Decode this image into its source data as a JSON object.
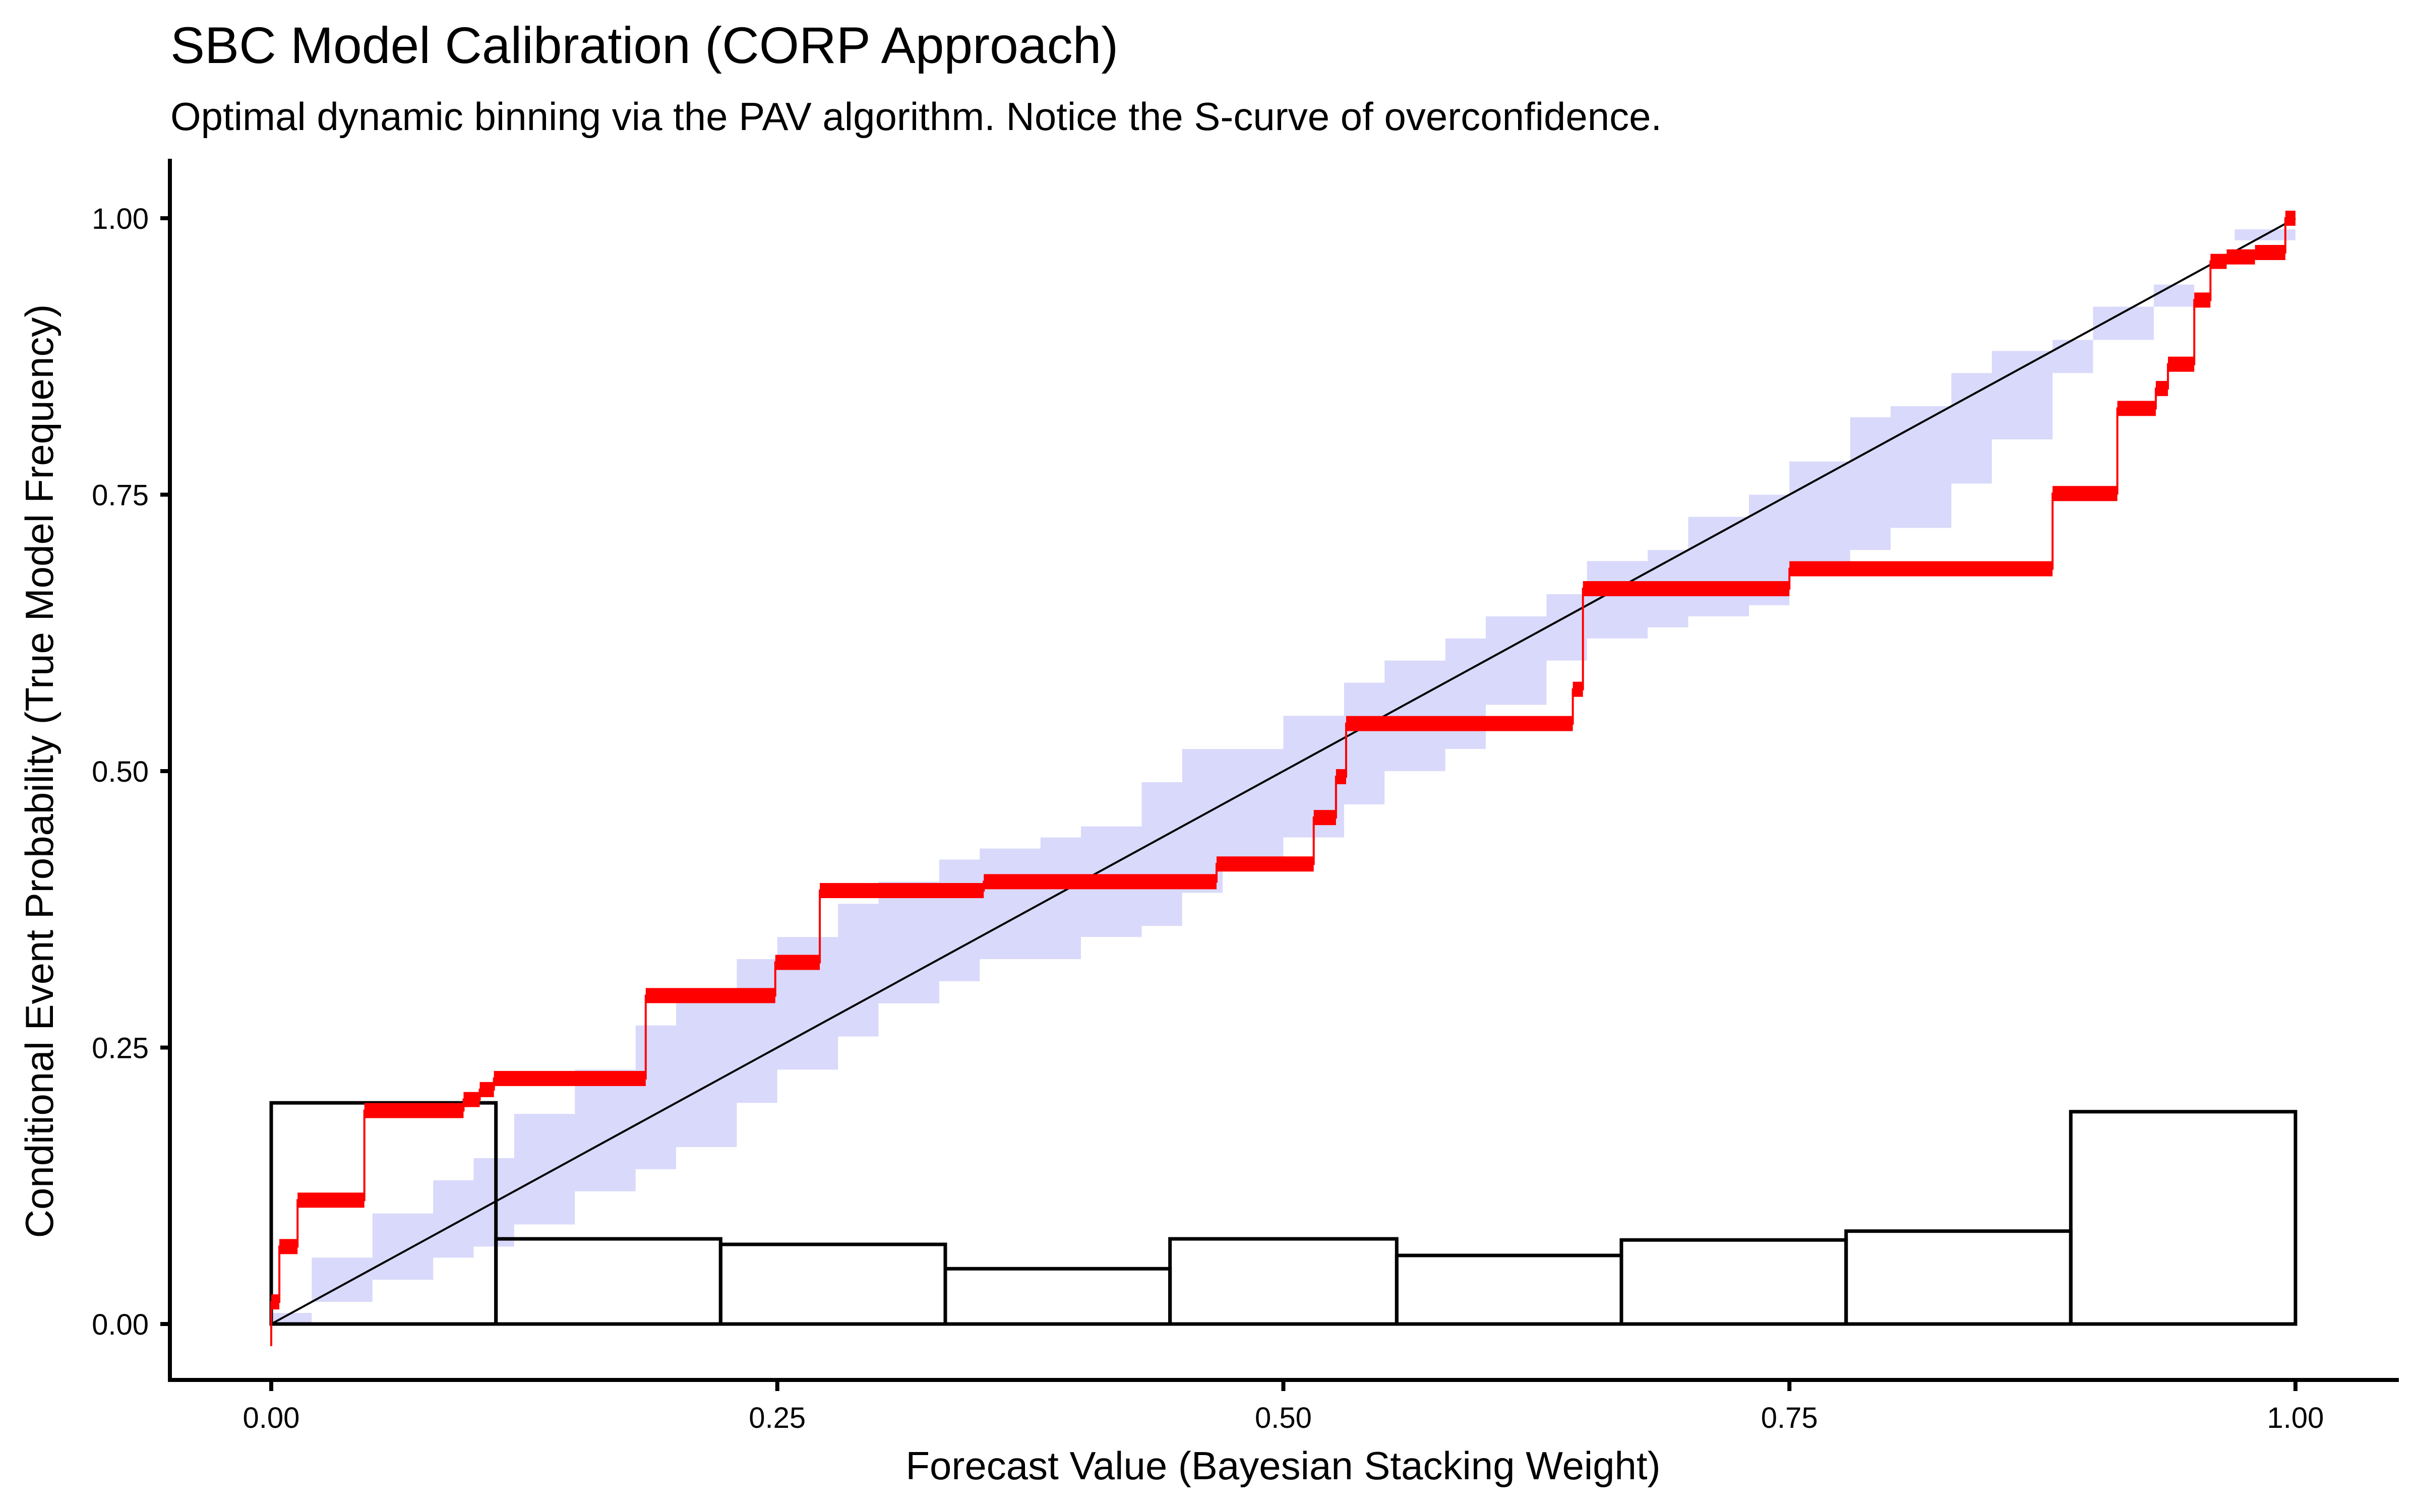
{
  "chart_data": {
    "type": "line",
    "title": "SBC Model Calibration (CORP Approach)",
    "subtitle": "Optimal dynamic binning via the PAV algorithm. Notice the S-curve of overconfidence.",
    "xlabel": "Forecast Value (Bayesian Stacking Weight)",
    "ylabel": "Conditional Event Probability (True Model Frequency)",
    "xlim": [
      0,
      1
    ],
    "ylim": [
      0,
      1
    ],
    "x_ticks": [
      0,
      0.25,
      0.5,
      0.75,
      1.0
    ],
    "x_tick_labels": [
      "0.00",
      "0.25",
      "0.50",
      "0.75",
      "1.00"
    ],
    "y_ticks": [
      0,
      0.25,
      0.5,
      0.75,
      1.0
    ],
    "y_tick_labels": [
      "0.00",
      "0.25",
      "0.50",
      "0.75",
      "1.00"
    ],
    "grid": false,
    "legend": "none",
    "colors": {
      "pav_curve": "#ff0000",
      "consistency_band": "#d9d9fb",
      "diagonal": "#000000",
      "histogram_outline": "#000000"
    },
    "series": [
      {
        "name": "PAV calibration curve",
        "type": "step",
        "segments": [
          {
            "x0": 0.0,
            "x1": 0.004,
            "y": 0.02
          },
          {
            "x0": 0.004,
            "x1": 0.013,
            "y": 0.07
          },
          {
            "x0": 0.013,
            "x1": 0.046,
            "y": 0.112
          },
          {
            "x0": 0.046,
            "x1": 0.095,
            "y": 0.193
          },
          {
            "x0": 0.095,
            "x1": 0.103,
            "y": 0.203
          },
          {
            "x0": 0.103,
            "x1": 0.11,
            "y": 0.212
          },
          {
            "x0": 0.11,
            "x1": 0.185,
            "y": 0.222
          },
          {
            "x0": 0.185,
            "x1": 0.249,
            "y": 0.297
          },
          {
            "x0": 0.249,
            "x1": 0.271,
            "y": 0.327
          },
          {
            "x0": 0.271,
            "x1": 0.352,
            "y": 0.392
          },
          {
            "x0": 0.352,
            "x1": 0.467,
            "y": 0.4
          },
          {
            "x0": 0.467,
            "x1": 0.515,
            "y": 0.416
          },
          {
            "x0": 0.515,
            "x1": 0.526,
            "y": 0.458
          },
          {
            "x0": 0.526,
            "x1": 0.531,
            "y": 0.495
          },
          {
            "x0": 0.531,
            "x1": 0.643,
            "y": 0.543
          },
          {
            "x0": 0.643,
            "x1": 0.648,
            "y": 0.574
          },
          {
            "x0": 0.648,
            "x1": 0.75,
            "y": 0.665
          },
          {
            "x0": 0.75,
            "x1": 0.88,
            "y": 0.683
          },
          {
            "x0": 0.88,
            "x1": 0.912,
            "y": 0.751
          },
          {
            "x0": 0.912,
            "x1": 0.931,
            "y": 0.828
          },
          {
            "x0": 0.931,
            "x1": 0.937,
            "y": 0.846
          },
          {
            "x0": 0.937,
            "x1": 0.95,
            "y": 0.868
          },
          {
            "x0": 0.95,
            "x1": 0.958,
            "y": 0.926
          },
          {
            "x0": 0.958,
            "x1": 0.966,
            "y": 0.961
          },
          {
            "x0": 0.966,
            "x1": 0.98,
            "y": 0.965
          },
          {
            "x0": 0.98,
            "x1": 0.995,
            "y": 0.969
          },
          {
            "x0": 0.995,
            "x1": 1.0,
            "y": 1.0
          }
        ]
      },
      {
        "name": "Consistency band",
        "type": "area",
        "x": [
          0.0,
          0.02,
          0.05,
          0.08,
          0.1,
          0.12,
          0.15,
          0.18,
          0.2,
          0.23,
          0.25,
          0.28,
          0.3,
          0.33,
          0.35,
          0.38,
          0.4,
          0.43,
          0.45,
          0.47,
          0.5,
          0.53,
          0.55,
          0.58,
          0.6,
          0.63,
          0.65,
          0.68,
          0.7,
          0.73,
          0.75,
          0.78,
          0.8,
          0.83,
          0.85,
          0.88,
          0.9,
          0.93,
          0.95,
          0.97,
          1.0
        ],
        "upper": [
          0.01,
          0.06,
          0.1,
          0.13,
          0.15,
          0.19,
          0.23,
          0.27,
          0.3,
          0.33,
          0.35,
          0.38,
          0.4,
          0.42,
          0.43,
          0.44,
          0.45,
          0.49,
          0.52,
          0.52,
          0.55,
          0.58,
          0.6,
          0.62,
          0.64,
          0.66,
          0.69,
          0.7,
          0.73,
          0.75,
          0.78,
          0.82,
          0.83,
          0.86,
          0.88,
          0.89,
          0.92,
          0.94,
          0.96,
          0.98,
          1.0
        ],
        "lower": [
          0.0,
          0.0,
          0.02,
          0.04,
          0.06,
          0.07,
          0.09,
          0.12,
          0.14,
          0.16,
          0.2,
          0.23,
          0.26,
          0.29,
          0.31,
          0.33,
          0.33,
          0.35,
          0.36,
          0.39,
          0.42,
          0.44,
          0.47,
          0.5,
          0.52,
          0.56,
          0.6,
          0.62,
          0.63,
          0.64,
          0.65,
          0.68,
          0.7,
          0.72,
          0.76,
          0.8,
          0.86,
          0.89,
          0.92,
          0.96,
          0.99
        ]
      },
      {
        "name": "Identity diagonal",
        "type": "line",
        "x": [
          0,
          1
        ],
        "y": [
          0,
          1
        ]
      },
      {
        "name": "Forecast histogram",
        "type": "bar",
        "bin_edges": [
          0.0,
          0.111,
          0.222,
          0.333,
          0.444,
          0.556,
          0.667,
          0.778,
          0.889,
          1.0
        ],
        "values": [
          0.2,
          0.077,
          0.072,
          0.05,
          0.077,
          0.062,
          0.076,
          0.084,
          0.192
        ]
      }
    ]
  }
}
